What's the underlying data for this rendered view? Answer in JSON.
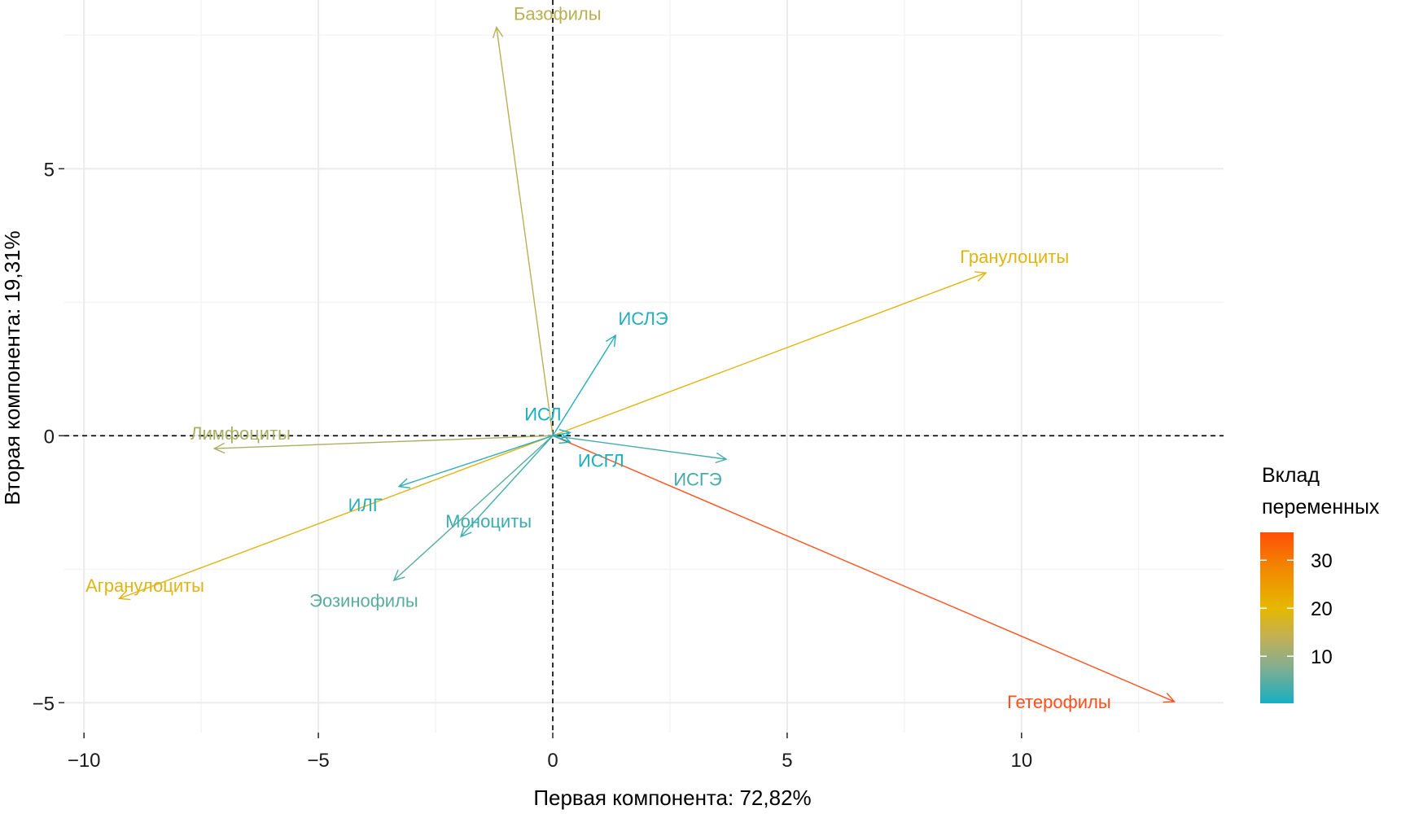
{
  "chart_data": {
    "type": "biplot",
    "title": "",
    "xlabel": "Первая  компонента: 72,82%",
    "ylabel": "Вторая  компонента: 19,31%",
    "xlim": [
      -10.42,
      14.31
    ],
    "ylim": [
      -5.56,
      8.16
    ],
    "x_ticks": [
      {
        "value": -10,
        "label": "−10"
      },
      {
        "value": -5,
        "label": "−5"
      },
      {
        "value": 0,
        "label": "0"
      },
      {
        "value": 5,
        "label": "5"
      },
      {
        "value": 10,
        "label": "10"
      }
    ],
    "y_ticks": [
      {
        "value": -5,
        "label": "−5"
      },
      {
        "value": 0,
        "label": "0"
      },
      {
        "value": 5,
        "label": "5"
      }
    ],
    "x_minor_grid": [
      -7.5,
      -2.5,
      2.5,
      7.5,
      12.5
    ],
    "y_minor_grid": [
      -2.5,
      2.5,
      7.5
    ],
    "grid": true,
    "reference_lines": {
      "x": 0,
      "y": 0,
      "style": "dashed"
    },
    "legend": {
      "title_lines": [
        "Вклад",
        "переменных"
      ],
      "placement": "right",
      "type": "colorbar",
      "range": [
        0.2,
        35.8
      ],
      "ticks": [
        {
          "value": 10,
          "label": "10"
        },
        {
          "value": 20,
          "label": "20"
        },
        {
          "value": 30,
          "label": "30"
        }
      ],
      "gradient_stops": [
        {
          "value": 0.2,
          "color": "#17AFC2"
        },
        {
          "value": 8,
          "color": "#86AE8E"
        },
        {
          "value": 14,
          "color": "#C2B055"
        },
        {
          "value": 20,
          "color": "#E6B800"
        },
        {
          "value": 28,
          "color": "#F18A00"
        },
        {
          "value": 35.8,
          "color": "#FF4F0A"
        }
      ]
    },
    "series": [
      {
        "name": "Гетерофилы",
        "x": 13.26,
        "y": -4.98,
        "contrib": 35.5,
        "color": "#FF4F1A",
        "label_at": [
          10.8,
          -4.98
        ]
      },
      {
        "name": "Гранулоциты",
        "x": 9.24,
        "y": 3.05,
        "contrib": 20.5,
        "color": "#E2B40E",
        "label_at": [
          9.85,
          3.36
        ]
      },
      {
        "name": "Агранулоциты",
        "x": -9.25,
        "y": -3.05,
        "contrib": 19.5,
        "color": "#E0B412",
        "label_at": [
          -8.7,
          -2.8
        ]
      },
      {
        "name": "Базофилы",
        "x": -1.2,
        "y": 7.65,
        "contrib": 11.5,
        "color": "#B8B054",
        "label_at": [
          0.1,
          7.91
        ]
      },
      {
        "name": "Лимфоциты",
        "x": -7.22,
        "y": -0.24,
        "contrib": 10.0,
        "color": "#A9AF62",
        "label_at": [
          -6.66,
          0.05
        ]
      },
      {
        "name": "Эозинофилы",
        "x": -3.39,
        "y": -2.71,
        "contrib": 5.0,
        "color": "#59AD9E",
        "label_at": [
          -4.03,
          -3.08
        ]
      },
      {
        "name": "ИСГЭ",
        "x": 3.7,
        "y": -0.44,
        "contrib": 4.0,
        "color": "#45ACA8",
        "label_at": [
          3.09,
          -0.81
        ]
      },
      {
        "name": "Моноциты",
        "x": -1.96,
        "y": -1.89,
        "contrib": 3.0,
        "color": "#3AACAE",
        "label_at": [
          -1.37,
          -1.6
        ]
      },
      {
        "name": "ИЛГ",
        "x": -3.28,
        "y": -0.95,
        "contrib": 2.0,
        "color": "#2EADB6",
        "label_at": [
          -4.0,
          -1.29
        ]
      },
      {
        "name": "ИСЛЭ",
        "x": 1.34,
        "y": 1.88,
        "contrib": 1.5,
        "color": "#22AEBC",
        "label_at": [
          1.93,
          2.2
        ]
      },
      {
        "name": "ИСЛ",
        "x": 0.37,
        "y": 0.06,
        "contrib": 0.3,
        "color": "#18AFC1",
        "label_at": [
          -0.21,
          0.41
        ]
      },
      {
        "name": "ИСГЛ",
        "x": 0.37,
        "y": -0.12,
        "contrib": 0.3,
        "color": "#18AFC1",
        "label_at": [
          1.03,
          -0.46
        ]
      }
    ]
  }
}
